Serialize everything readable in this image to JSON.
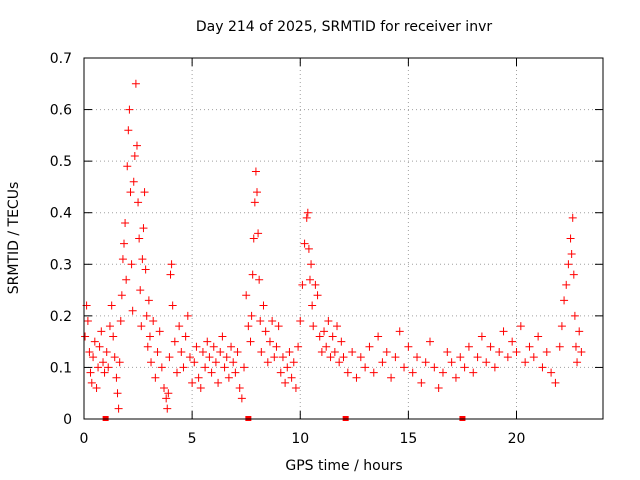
{
  "chart_data": {
    "type": "scatter",
    "title": "Day 214 of 2025, SRMTID for receiver invr",
    "xlabel": "GPS time / hours",
    "ylabel": "SRMTID / TECUs",
    "xlim": [
      0,
      24
    ],
    "ylim": [
      0,
      0.7
    ],
    "x_ticks": [
      0,
      5,
      10,
      15,
      20
    ],
    "x_tick_labels": [
      "0",
      "5",
      "10",
      "15",
      "20"
    ],
    "y_ticks": [
      0,
      0.1,
      0.2,
      0.3,
      0.4,
      0.5,
      0.6,
      0.7
    ],
    "y_tick_labels": [
      "0",
      "0.1",
      "0.2",
      "0.3",
      "0.4",
      "0.5",
      "0.6",
      "0.7"
    ],
    "grid": true,
    "marker": "plus",
    "series_color": "#ff0000",
    "gap_markers_x": [
      1.0,
      7.6,
      12.1,
      17.5
    ],
    "data_summary": {
      "x_range_hours": [
        0,
        23
      ],
      "baseline_level": 0.12,
      "enhancements": [
        {
          "x_center": 2.4,
          "peak": 0.65
        },
        {
          "x_center": 8.0,
          "peak": 0.48
        },
        {
          "x_center": 10.4,
          "peak": 0.4
        },
        {
          "x_center": 22.6,
          "peak": 0.39
        }
      ]
    },
    "points": [
      [
        0.05,
        0.16
      ],
      [
        0.12,
        0.22
      ],
      [
        0.18,
        0.19
      ],
      [
        0.25,
        0.13
      ],
      [
        0.3,
        0.09
      ],
      [
        0.36,
        0.07
      ],
      [
        0.42,
        0.12
      ],
      [
        0.5,
        0.15
      ],
      [
        0.58,
        0.06
      ],
      [
        0.65,
        0.1
      ],
      [
        0.72,
        0.14
      ],
      [
        0.8,
        0.17
      ],
      [
        0.88,
        0.11
      ],
      [
        0.95,
        0.09
      ],
      [
        1.05,
        0.13
      ],
      [
        1.12,
        0.1
      ],
      [
        1.2,
        0.18
      ],
      [
        1.28,
        0.22
      ],
      [
        1.35,
        0.16
      ],
      [
        1.42,
        0.12
      ],
      [
        1.5,
        0.08
      ],
      [
        1.55,
        0.05
      ],
      [
        1.6,
        0.02
      ],
      [
        1.65,
        0.11
      ],
      [
        1.7,
        0.19
      ],
      [
        1.75,
        0.24
      ],
      [
        1.8,
        0.31
      ],
      [
        1.85,
        0.34
      ],
      [
        1.9,
        0.38
      ],
      [
        1.95,
        0.27
      ],
      [
        2.0,
        0.49
      ],
      [
        2.05,
        0.56
      ],
      [
        2.1,
        0.6
      ],
      [
        2.15,
        0.44
      ],
      [
        2.2,
        0.3
      ],
      [
        2.25,
        0.21
      ],
      [
        2.3,
        0.46
      ],
      [
        2.35,
        0.51
      ],
      [
        2.4,
        0.65
      ],
      [
        2.45,
        0.53
      ],
      [
        2.5,
        0.42
      ],
      [
        2.55,
        0.35
      ],
      [
        2.6,
        0.25
      ],
      [
        2.65,
        0.18
      ],
      [
        2.7,
        0.31
      ],
      [
        2.75,
        0.37
      ],
      [
        2.8,
        0.44
      ],
      [
        2.85,
        0.29
      ],
      [
        2.9,
        0.2
      ],
      [
        2.95,
        0.14
      ],
      [
        3.0,
        0.23
      ],
      [
        3.05,
        0.16
      ],
      [
        3.1,
        0.11
      ],
      [
        3.2,
        0.19
      ],
      [
        3.3,
        0.08
      ],
      [
        3.4,
        0.13
      ],
      [
        3.5,
        0.17
      ],
      [
        3.6,
        0.1
      ],
      [
        3.7,
        0.06
      ],
      [
        3.8,
        0.04
      ],
      [
        3.85,
        0.02
      ],
      [
        3.9,
        0.05
      ],
      [
        3.95,
        0.12
      ],
      [
        4.0,
        0.28
      ],
      [
        4.05,
        0.3
      ],
      [
        4.1,
        0.22
      ],
      [
        4.2,
        0.15
      ],
      [
        4.3,
        0.09
      ],
      [
        4.4,
        0.18
      ],
      [
        4.5,
        0.13
      ],
      [
        4.6,
        0.1
      ],
      [
        4.7,
        0.16
      ],
      [
        4.8,
        0.2
      ],
      [
        4.9,
        0.12
      ],
      [
        5.0,
        0.07
      ],
      [
        5.1,
        0.11
      ],
      [
        5.2,
        0.14
      ],
      [
        5.3,
        0.08
      ],
      [
        5.4,
        0.06
      ],
      [
        5.5,
        0.13
      ],
      [
        5.6,
        0.1
      ],
      [
        5.7,
        0.15
      ],
      [
        5.8,
        0.12
      ],
      [
        5.9,
        0.09
      ],
      [
        6.0,
        0.14
      ],
      [
        6.1,
        0.11
      ],
      [
        6.2,
        0.07
      ],
      [
        6.3,
        0.13
      ],
      [
        6.4,
        0.16
      ],
      [
        6.5,
        0.1
      ],
      [
        6.6,
        0.12
      ],
      [
        6.7,
        0.08
      ],
      [
        6.8,
        0.14
      ],
      [
        6.9,
        0.11
      ],
      [
        7.0,
        0.09
      ],
      [
        7.1,
        0.13
      ],
      [
        7.2,
        0.06
      ],
      [
        7.3,
        0.04
      ],
      [
        7.4,
        0.1
      ],
      [
        7.5,
        0.24
      ],
      [
        7.6,
        0.18
      ],
      [
        7.7,
        0.15
      ],
      [
        7.75,
        0.2
      ],
      [
        7.8,
        0.28
      ],
      [
        7.85,
        0.35
      ],
      [
        7.9,
        0.42
      ],
      [
        7.95,
        0.48
      ],
      [
        8.0,
        0.44
      ],
      [
        8.05,
        0.36
      ],
      [
        8.1,
        0.27
      ],
      [
        8.15,
        0.19
      ],
      [
        8.2,
        0.13
      ],
      [
        8.3,
        0.22
      ],
      [
        8.4,
        0.17
      ],
      [
        8.5,
        0.11
      ],
      [
        8.6,
        0.15
      ],
      [
        8.7,
        0.19
      ],
      [
        8.8,
        0.12
      ],
      [
        8.9,
        0.14
      ],
      [
        9.0,
        0.18
      ],
      [
        9.1,
        0.09
      ],
      [
        9.2,
        0.12
      ],
      [
        9.3,
        0.07
      ],
      [
        9.4,
        0.1
      ],
      [
        9.5,
        0.13
      ],
      [
        9.6,
        0.08
      ],
      [
        9.7,
        0.11
      ],
      [
        9.8,
        0.06
      ],
      [
        9.9,
        0.14
      ],
      [
        10.0,
        0.19
      ],
      [
        10.1,
        0.26
      ],
      [
        10.2,
        0.34
      ],
      [
        10.3,
        0.39
      ],
      [
        10.35,
        0.4
      ],
      [
        10.4,
        0.33
      ],
      [
        10.45,
        0.27
      ],
      [
        10.5,
        0.3
      ],
      [
        10.55,
        0.22
      ],
      [
        10.6,
        0.18
      ],
      [
        10.7,
        0.26
      ],
      [
        10.8,
        0.24
      ],
      [
        10.9,
        0.16
      ],
      [
        11.0,
        0.13
      ],
      [
        11.1,
        0.17
      ],
      [
        11.2,
        0.14
      ],
      [
        11.3,
        0.19
      ],
      [
        11.4,
        0.12
      ],
      [
        11.5,
        0.16
      ],
      [
        11.6,
        0.13
      ],
      [
        11.7,
        0.18
      ],
      [
        11.8,
        0.11
      ],
      [
        11.9,
        0.15
      ],
      [
        12.0,
        0.12
      ],
      [
        12.2,
        0.09
      ],
      [
        12.4,
        0.13
      ],
      [
        12.6,
        0.08
      ],
      [
        12.8,
        0.12
      ],
      [
        13.0,
        0.1
      ],
      [
        13.2,
        0.14
      ],
      [
        13.4,
        0.09
      ],
      [
        13.6,
        0.16
      ],
      [
        13.8,
        0.11
      ],
      [
        14.0,
        0.13
      ],
      [
        14.2,
        0.08
      ],
      [
        14.4,
        0.12
      ],
      [
        14.6,
        0.17
      ],
      [
        14.8,
        0.1
      ],
      [
        15.0,
        0.14
      ],
      [
        15.2,
        0.09
      ],
      [
        15.4,
        0.12
      ],
      [
        15.6,
        0.07
      ],
      [
        15.8,
        0.11
      ],
      [
        16.0,
        0.15
      ],
      [
        16.2,
        0.1
      ],
      [
        16.4,
        0.06
      ],
      [
        16.6,
        0.09
      ],
      [
        16.8,
        0.13
      ],
      [
        17.0,
        0.11
      ],
      [
        17.2,
        0.08
      ],
      [
        17.4,
        0.12
      ],
      [
        17.6,
        0.1
      ],
      [
        17.8,
        0.14
      ],
      [
        18.0,
        0.09
      ],
      [
        18.2,
        0.12
      ],
      [
        18.4,
        0.16
      ],
      [
        18.6,
        0.11
      ],
      [
        18.8,
        0.14
      ],
      [
        19.0,
        0.1
      ],
      [
        19.2,
        0.13
      ],
      [
        19.4,
        0.17
      ],
      [
        19.6,
        0.12
      ],
      [
        19.8,
        0.15
      ],
      [
        20.0,
        0.13
      ],
      [
        20.2,
        0.18
      ],
      [
        20.4,
        0.11
      ],
      [
        20.6,
        0.14
      ],
      [
        20.8,
        0.12
      ],
      [
        21.0,
        0.16
      ],
      [
        21.2,
        0.1
      ],
      [
        21.4,
        0.13
      ],
      [
        21.6,
        0.09
      ],
      [
        21.8,
        0.07
      ],
      [
        22.0,
        0.14
      ],
      [
        22.1,
        0.18
      ],
      [
        22.2,
        0.23
      ],
      [
        22.3,
        0.26
      ],
      [
        22.4,
        0.3
      ],
      [
        22.5,
        0.35
      ],
      [
        22.55,
        0.32
      ],
      [
        22.6,
        0.39
      ],
      [
        22.65,
        0.28
      ],
      [
        22.7,
        0.2
      ],
      [
        22.75,
        0.14
      ],
      [
        22.8,
        0.11
      ],
      [
        22.9,
        0.17
      ],
      [
        23.0,
        0.13
      ]
    ]
  }
}
